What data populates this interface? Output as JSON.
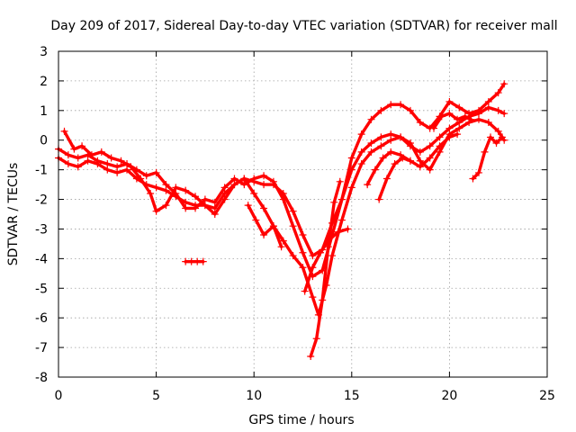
{
  "chart_data": {
    "type": "scatter",
    "title": "Day 209 of 2017, Sidereal Day-to-day VTEC variation (SDTVAR) for receiver mall",
    "xlabel": "GPS time / hours",
    "ylabel": "SDTVAR / TECUs",
    "xlim": [
      0,
      25
    ],
    "ylim": [
      -8,
      3
    ],
    "xticks": [
      "0",
      "5",
      "10",
      "15",
      "20",
      "25"
    ],
    "yticks": [
      "3",
      "2",
      "1",
      "0",
      "-1",
      "-2",
      "-3",
      "-4",
      "-5",
      "-6",
      "-7",
      "-8"
    ],
    "grid": true,
    "color": "#ff0000",
    "marker": "plus",
    "series": [
      {
        "points": [
          [
            0.0,
            -0.6
          ],
          [
            0.5,
            -0.8
          ],
          [
            1.0,
            -0.9
          ],
          [
            1.5,
            -0.7
          ],
          [
            2.0,
            -0.8
          ],
          [
            2.5,
            -1.0
          ],
          [
            3.0,
            -1.1
          ],
          [
            3.5,
            -1.0
          ],
          [
            4.0,
            -1.3
          ],
          [
            4.5,
            -1.5
          ],
          [
            5.0,
            -1.6
          ],
          [
            5.5,
            -1.7
          ],
          [
            6.0,
            -1.9
          ],
          [
            6.5,
            -2.1
          ],
          [
            7.0,
            -2.2
          ],
          [
            7.5,
            -2.2
          ],
          [
            8.0,
            -2.5
          ],
          [
            8.5,
            -2.0
          ],
          [
            9.0,
            -1.5
          ],
          [
            9.5,
            -1.3
          ],
          [
            10.0,
            -1.4
          ],
          [
            10.5,
            -1.5
          ],
          [
            11.0,
            -1.5
          ],
          [
            11.5,
            -1.8
          ],
          [
            12.0,
            -2.4
          ],
          [
            12.5,
            -3.2
          ],
          [
            13.0,
            -3.9
          ],
          [
            13.5,
            -3.7
          ],
          [
            14.0,
            -2.8
          ],
          [
            14.5,
            -2.0
          ],
          [
            15.0,
            -1.0
          ],
          [
            15.5,
            -0.4
          ],
          [
            16.0,
            -0.1
          ],
          [
            16.5,
            0.1
          ],
          [
            17.0,
            0.2
          ],
          [
            17.5,
            0.1
          ],
          [
            18.0,
            -0.2
          ],
          [
            18.5,
            -0.4
          ],
          [
            19.0,
            -0.2
          ],
          [
            19.5,
            0.1
          ],
          [
            20.0,
            0.4
          ],
          [
            20.5,
            0.6
          ],
          [
            21.0,
            0.8
          ],
          [
            21.5,
            0.9
          ],
          [
            22.0,
            1.1
          ],
          [
            22.5,
            1.0
          ],
          [
            22.8,
            0.9
          ]
        ]
      },
      {
        "points": [
          [
            0.0,
            -0.3
          ],
          [
            0.5,
            -0.5
          ],
          [
            1.0,
            -0.6
          ],
          [
            1.5,
            -0.5
          ],
          [
            2.0,
            -0.7
          ],
          [
            2.5,
            -0.8
          ],
          [
            3.0,
            -0.9
          ],
          [
            3.5,
            -0.8
          ],
          [
            4.0,
            -1.0
          ],
          [
            4.5,
            -1.2
          ],
          [
            5.0,
            -1.1
          ],
          [
            5.5,
            -1.5
          ],
          [
            6.0,
            -1.8
          ],
          [
            6.5,
            -2.3
          ],
          [
            7.0,
            -2.3
          ],
          [
            7.5,
            -2.0
          ],
          [
            8.0,
            -2.1
          ],
          [
            8.5,
            -1.6
          ],
          [
            9.0,
            -1.3
          ],
          [
            9.5,
            -1.5
          ],
          [
            10.0,
            -1.3
          ],
          [
            10.5,
            -1.2
          ],
          [
            11.0,
            -1.4
          ],
          [
            11.5,
            -2.0
          ],
          [
            12.0,
            -2.9
          ],
          [
            12.5,
            -3.8
          ],
          [
            13.0,
            -4.6
          ],
          [
            13.5,
            -4.4
          ],
          [
            14.0,
            -3.2
          ],
          [
            14.5,
            -2.0
          ],
          [
            15.0,
            -0.6
          ],
          [
            15.5,
            0.2
          ],
          [
            16.0,
            0.7
          ],
          [
            16.5,
            1.0
          ],
          [
            17.0,
            1.2
          ],
          [
            17.5,
            1.2
          ],
          [
            18.0,
            1.0
          ],
          [
            18.5,
            0.6
          ],
          [
            19.0,
            0.4
          ],
          [
            19.5,
            0.8
          ],
          [
            20.0,
            1.3
          ],
          [
            20.5,
            1.1
          ],
          [
            21.0,
            0.9
          ],
          [
            21.5,
            1.0
          ],
          [
            22.0,
            1.3
          ],
          [
            22.5,
            1.6
          ],
          [
            22.8,
            1.9
          ]
        ]
      },
      {
        "points": [
          [
            0.3,
            0.3
          ],
          [
            0.8,
            -0.3
          ],
          [
            1.2,
            -0.2
          ],
          [
            1.7,
            -0.5
          ],
          [
            2.2,
            -0.4
          ],
          [
            2.7,
            -0.6
          ],
          [
            3.2,
            -0.7
          ],
          [
            3.7,
            -0.9
          ],
          [
            4.2,
            -1.3
          ],
          [
            4.7,
            -1.8
          ],
          [
            5.0,
            -2.4
          ],
          [
            5.5,
            -2.2
          ],
          [
            6.0,
            -1.6
          ],
          [
            6.5,
            -1.7
          ],
          [
            7.0,
            -1.9
          ],
          [
            7.5,
            -2.2
          ],
          [
            8.0,
            -2.3
          ],
          [
            8.5,
            -1.8
          ],
          [
            9.0,
            -1.5
          ],
          [
            9.5,
            -1.3
          ],
          [
            10.0,
            -1.8
          ],
          [
            10.5,
            -2.3
          ],
          [
            11.0,
            -2.9
          ],
          [
            11.5,
            -3.4
          ],
          [
            12.0,
            -3.9
          ],
          [
            12.5,
            -4.3
          ],
          [
            13.0,
            -5.3
          ],
          [
            13.3,
            -5.9
          ],
          [
            13.7,
            -4.9
          ],
          [
            14.0,
            -3.9
          ],
          [
            14.5,
            -2.7
          ],
          [
            15.0,
            -1.6
          ],
          [
            15.5,
            -0.8
          ],
          [
            16.0,
            -0.4
          ],
          [
            16.5,
            -0.2
          ],
          [
            17.0,
            0.0
          ],
          [
            17.5,
            0.1
          ],
          [
            18.0,
            -0.1
          ],
          [
            18.5,
            -0.7
          ],
          [
            19.0,
            -1.0
          ],
          [
            19.5,
            -0.4
          ],
          [
            20.0,
            0.2
          ],
          [
            20.5,
            0.4
          ],
          [
            21.0,
            0.6
          ],
          [
            21.5,
            0.7
          ],
          [
            22.0,
            0.6
          ],
          [
            22.5,
            0.3
          ],
          [
            22.8,
            0.0
          ]
        ]
      },
      {
        "points": [
          [
            9.7,
            -2.2
          ],
          [
            10.1,
            -2.7
          ],
          [
            10.5,
            -3.2
          ],
          [
            11.0,
            -2.9
          ],
          [
            11.4,
            -3.6
          ]
        ]
      },
      {
        "points": [
          [
            6.5,
            -4.1
          ],
          [
            6.8,
            -4.1
          ],
          [
            7.1,
            -4.1
          ],
          [
            7.4,
            -4.1
          ]
        ]
      },
      {
        "points": [
          [
            12.6,
            -5.1
          ],
          [
            13.0,
            -4.3
          ],
          [
            13.4,
            -3.8
          ],
          [
            13.8,
            -3.4
          ],
          [
            14.3,
            -3.1
          ],
          [
            14.8,
            -3.0
          ]
        ]
      },
      {
        "points": [
          [
            12.9,
            -7.3
          ],
          [
            13.2,
            -6.7
          ],
          [
            13.5,
            -5.4
          ],
          [
            13.8,
            -3.6
          ],
          [
            14.1,
            -2.1
          ],
          [
            14.4,
            -1.4
          ]
        ]
      },
      {
        "points": [
          [
            15.8,
            -1.5
          ],
          [
            16.2,
            -1.0
          ],
          [
            16.6,
            -0.6
          ],
          [
            17.0,
            -0.4
          ],
          [
            17.5,
            -0.5
          ],
          [
            18.0,
            -0.7
          ],
          [
            18.5,
            -0.9
          ],
          [
            19.0,
            -0.6
          ],
          [
            19.5,
            -0.2
          ],
          [
            20.0,
            0.1
          ],
          [
            20.4,
            0.2
          ]
        ]
      },
      {
        "points": [
          [
            16.4,
            -2.0
          ],
          [
            16.8,
            -1.3
          ],
          [
            17.2,
            -0.8
          ],
          [
            17.6,
            -0.6
          ],
          [
            18.0,
            -0.7
          ]
        ]
      },
      {
        "points": [
          [
            21.2,
            -1.3
          ],
          [
            21.5,
            -1.1
          ],
          [
            21.8,
            -0.4
          ],
          [
            22.1,
            0.1
          ],
          [
            22.4,
            -0.1
          ],
          [
            22.7,
            0.1
          ]
        ]
      },
      {
        "points": [
          [
            19.2,
            0.4
          ],
          [
            19.6,
            0.8
          ],
          [
            20.0,
            0.9
          ],
          [
            20.4,
            0.7
          ],
          [
            20.8,
            0.8
          ],
          [
            21.1,
            0.7
          ]
        ]
      }
    ]
  }
}
